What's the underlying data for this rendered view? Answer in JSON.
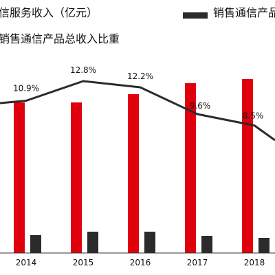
{
  "chart_data": {
    "type": "bar",
    "categories": [
      "2014",
      "2015",
      "2016",
      "2017",
      "2018"
    ],
    "series": [
      {
        "name": "信服务收入（亿元）",
        "type": "bar",
        "color": "#e0000d"
      },
      {
        "name": "销售通信产品",
        "type": "bar",
        "color": "#2b2b2b"
      },
      {
        "name": "销售通信产品总收入比重",
        "type": "line",
        "color": "#2b2b2b",
        "values": [
          10.9,
          12.8,
          12.2,
          9.6,
          8.5
        ],
        "labels": [
          "10.9%",
          "12.8%",
          "12.2%",
          "9.6%",
          "8.5%"
        ]
      }
    ],
    "legend_position": "top",
    "grid": false
  }
}
